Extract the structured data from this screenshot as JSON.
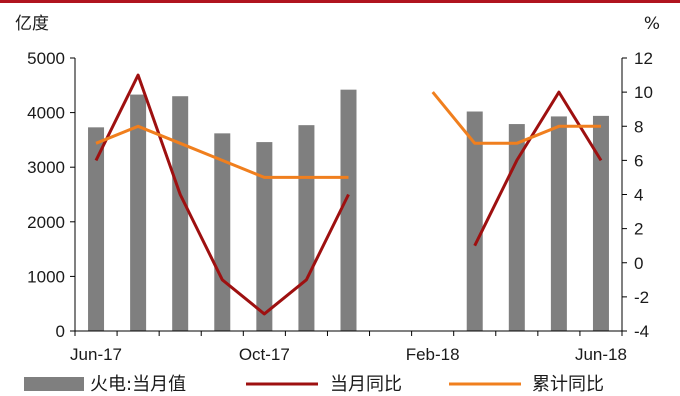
{
  "chart_data": {
    "type": "bar+line",
    "left_unit": "亿度",
    "right_unit": "%",
    "categories": [
      "Jun-17",
      "Jul-17",
      "Aug-17",
      "Sep-17",
      "Oct-17",
      "Nov-17",
      "Dec-17",
      "Jan-18",
      "Feb-18",
      "Mar-18",
      "Apr-18",
      "May-18",
      "Jun-18"
    ],
    "x_tick_labels": [
      "Jun-17",
      "Oct-17",
      "Feb-18",
      "Jun-18"
    ],
    "left_axis": {
      "min": 0,
      "max": 5000,
      "ticks": [
        "0",
        "1000",
        "2000",
        "3000",
        "4000",
        "5000"
      ]
    },
    "right_axis": {
      "min": -4,
      "max": 12,
      "ticks": [
        "-4",
        "-2",
        "0",
        "2",
        "4",
        "6",
        "8",
        "10",
        "12"
      ]
    },
    "bar_series": {
      "name": "火电:当月值",
      "color": "#7f7f7f",
      "values": [
        3730,
        4330,
        4300,
        3620,
        3460,
        3770,
        4420,
        null,
        null,
        4020,
        3790,
        3930,
        3940
      ]
    },
    "line_series": [
      {
        "name": "当月同比",
        "color": "#9e1010",
        "values": [
          6,
          11,
          4,
          -1,
          -3,
          -1,
          4,
          null,
          null,
          1,
          6,
          10,
          6
        ]
      },
      {
        "name": "累计同比",
        "color": "#f07f1e",
        "values": [
          7,
          8,
          7,
          6,
          5,
          5,
          5,
          null,
          10,
          7,
          7,
          8,
          8
        ]
      }
    ],
    "legend_position": "bottom"
  }
}
